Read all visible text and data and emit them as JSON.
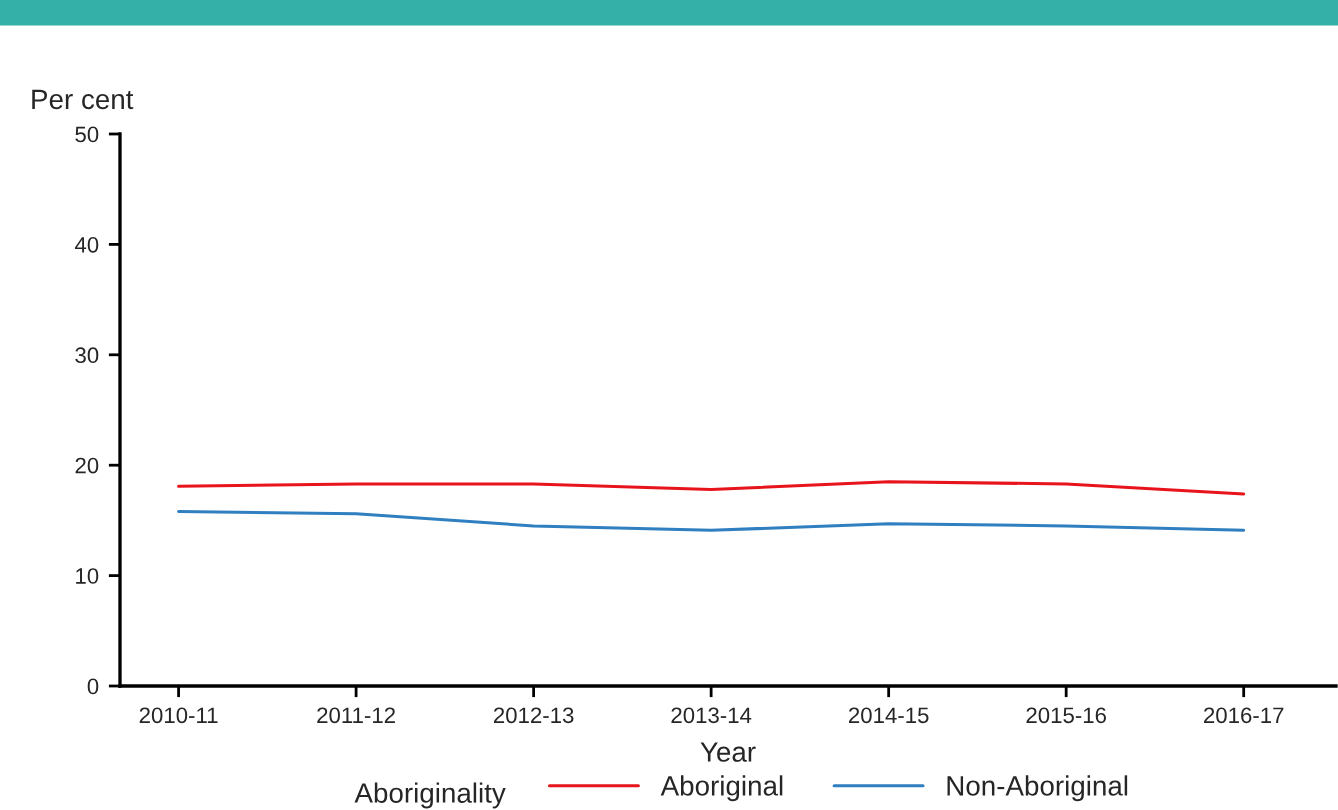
{
  "chart_data": {
    "type": "line",
    "xlabel": "Year",
    "ylabel": "Per cent",
    "legend_title": "Aboriginality",
    "categories": [
      "2010-11",
      "2011-12",
      "2012-13",
      "2013-14",
      "2014-15",
      "2015-16",
      "2016-17"
    ],
    "series": [
      {
        "name": "Aboriginal",
        "color": "#e8141c",
        "values": [
          18.1,
          18.3,
          18.3,
          17.8,
          18.5,
          18.3,
          17.4
        ]
      },
      {
        "name": "Non-Aboriginal",
        "color": "#2f7fc1",
        "values": [
          15.8,
          15.6,
          14.5,
          14.1,
          14.7,
          14.5,
          14.1
        ]
      }
    ],
    "ylim": [
      0,
      50
    ],
    "yticks": [
      0,
      10,
      20,
      30,
      40,
      50
    ],
    "grid": false,
    "legend": "bottom",
    "marker": "none",
    "line_style": "solid"
  }
}
